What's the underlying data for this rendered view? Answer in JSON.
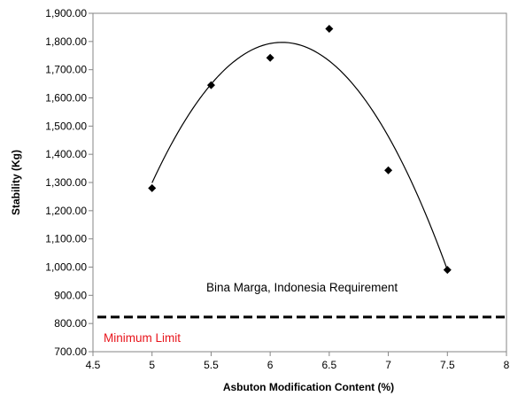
{
  "chart_data": {
    "type": "scatter",
    "title": "",
    "xlabel": "Asbuton  Modification Content (%)",
    "ylabel": "Stability (Kg)",
    "xlim": [
      4.5,
      8
    ],
    "ylim": [
      700,
      1900
    ],
    "x_ticks": [
      4.5,
      5,
      5.5,
      6,
      6.5,
      7,
      7.5,
      8
    ],
    "x_tick_labels": [
      "4.5",
      "5",
      "5.5",
      "6",
      "6.5",
      "7",
      "7.5",
      "8"
    ],
    "y_ticks": [
      700,
      800,
      900,
      1000,
      1100,
      1200,
      1300,
      1400,
      1500,
      1600,
      1700,
      1800,
      1900
    ],
    "y_tick_labels": [
      "700.00",
      "800.00",
      "900.00",
      "1,000.00",
      "1,100.00",
      "1,200.00",
      "1,300.00",
      "1,400.00",
      "1,500.00",
      "1,600.00",
      "1,700.00",
      "1,800.00",
      "1,900.00"
    ],
    "grid": false,
    "legend": "none",
    "series": [
      {
        "marker": "diamond",
        "color": "#000000",
        "points": [
          {
            "x": 5.0,
            "y": 1280
          },
          {
            "x": 5.5,
            "y": 1645
          },
          {
            "x": 6.0,
            "y": 1742
          },
          {
            "x": 6.5,
            "y": 1845
          },
          {
            "x": 7.0,
            "y": 1343
          },
          {
            "x": 7.5,
            "y": 990
          }
        ]
      }
    ],
    "trendline": {
      "type": "polynomial",
      "order": 2,
      "x_range": [
        5.0,
        7.5
      ],
      "vertex": {
        "x": 6.1,
        "y": 1797
      },
      "color": "#000000"
    },
    "reference_line": {
      "y": 823,
      "style": "dashed",
      "color": "#000000"
    },
    "annotations": {
      "requirement_label": "Bina Marga, Indonesia Requirement",
      "requirement_color": "#000000",
      "limit_label": "Minimum Limit",
      "limit_color": "#e8141b"
    }
  }
}
